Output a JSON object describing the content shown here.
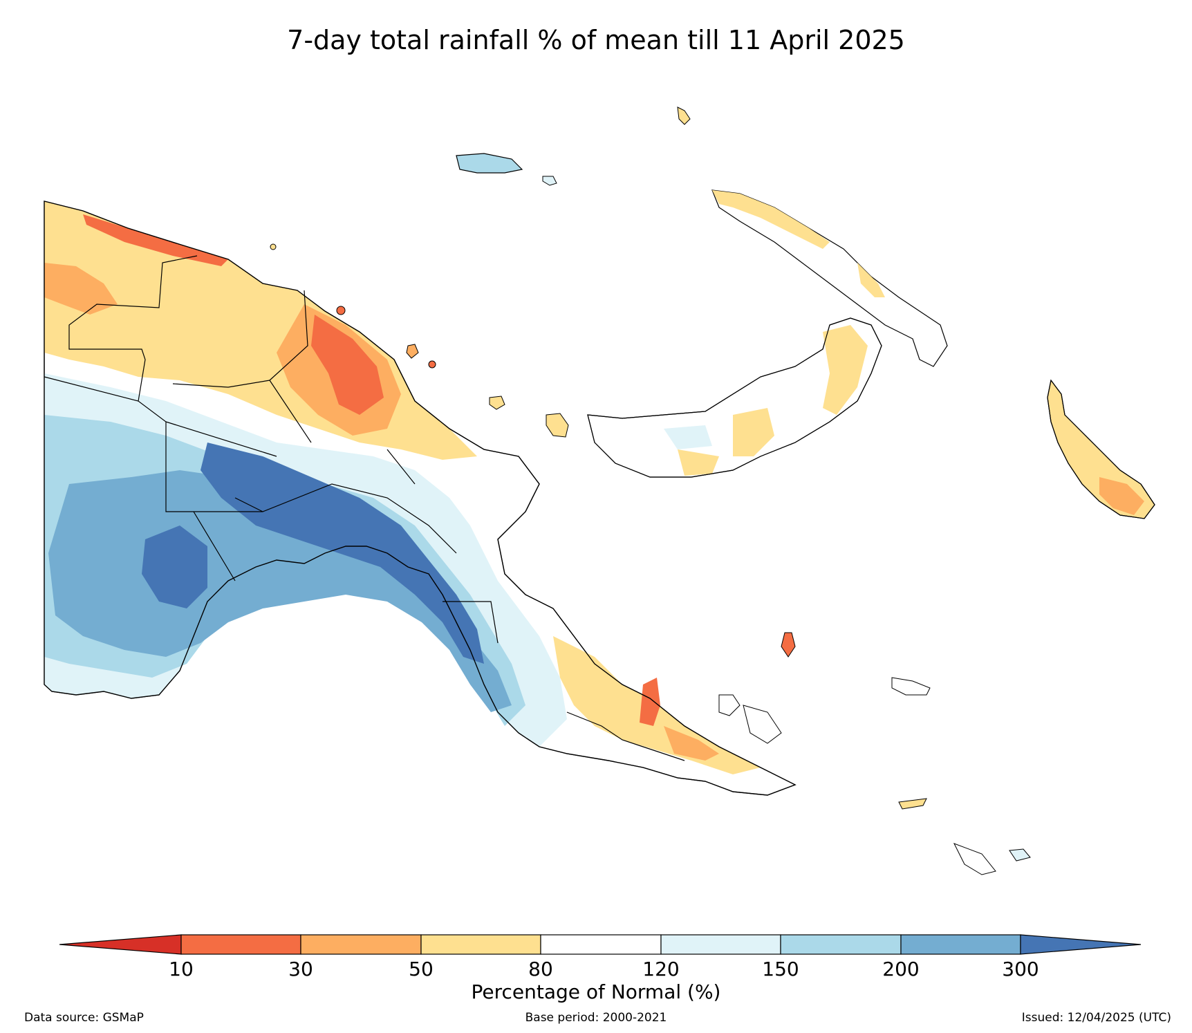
{
  "title": "7-day total rainfall % of mean till 11 April 2025",
  "colorbar": {
    "label": "Percentage of Normal (%)",
    "ticks": [
      "10",
      "30",
      "50",
      "80",
      "120",
      "150",
      "200",
      "300"
    ],
    "colors": [
      "#d73027",
      "#f46d43",
      "#fdae61",
      "#fee090",
      "#ffffff",
      "#e0f3f8",
      "#abd9e9",
      "#74add1",
      "#4575b4"
    ]
  },
  "footer": {
    "source": "Data source: GSMaP",
    "base_period": "Base period: 2000-2021",
    "issued": "Issued: 12/04/2025 (UTC)"
  }
}
